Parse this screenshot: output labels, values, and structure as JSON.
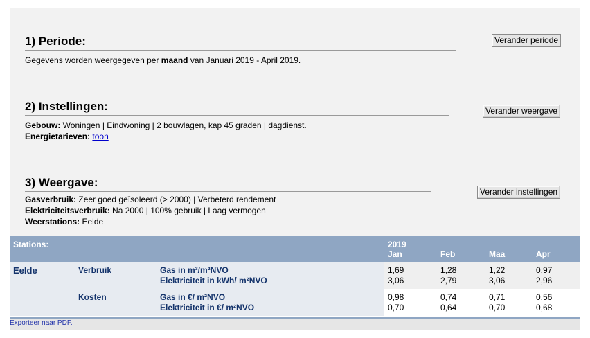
{
  "periode": {
    "title": "1) Periode:",
    "text_prefix": "Gegevens worden weergegeven per ",
    "text_bold": "maand",
    "text_suffix": " van Januari 2019 - April 2019.",
    "button": "Verander periode"
  },
  "instellingen": {
    "title": "2) Instellingen:",
    "gebouw_label": "Gebouw:",
    "gebouw_value": " Woningen | Eindwoning | 2 bouwlagen, kap 45 graden | dagdienst.",
    "tarief_label": "Energietarieven:",
    "tarief_link": "toon",
    "button": "Verander weergave"
  },
  "weergave": {
    "title": "3) Weergave:",
    "gas_label": "Gasverbruik:",
    "gas_value": " Zeer goed geïsoleerd (> 2000) | Verbeterd rendement",
    "elek_label": "Elektriciteitsverbruik:",
    "elek_value": " Na 2000 | 100% gebruik | Laag vermogen",
    "weer_label": "Weerstations:",
    "weer_value": " Eelde",
    "button": "Verander instellingen"
  },
  "table": {
    "stations_label": "Stations:",
    "year": "2019",
    "months": [
      "Jan",
      "Feb",
      "Maa",
      "Apr"
    ],
    "station": "Eelde",
    "rows": [
      {
        "group": "Verbruik",
        "labels": [
          "Gas in m³/m²NVO",
          "Elektriciteit in kWh/ m²NVO"
        ],
        "values": [
          [
            "1,69",
            "1,28",
            "1,22",
            "0,97"
          ],
          [
            "3,06",
            "2,79",
            "3,06",
            "2,96"
          ]
        ]
      },
      {
        "group": "Kosten",
        "labels": [
          "Gas in €/ m²NVO",
          "Elektriciteit in €/ m²NVO"
        ],
        "values": [
          [
            "0,98",
            "0,74",
            "0,71",
            "0,56"
          ],
          [
            "0,70",
            "0,64",
            "0,70",
            "0,68"
          ]
        ]
      }
    ]
  },
  "export_link": "Exporteer naar PDF."
}
